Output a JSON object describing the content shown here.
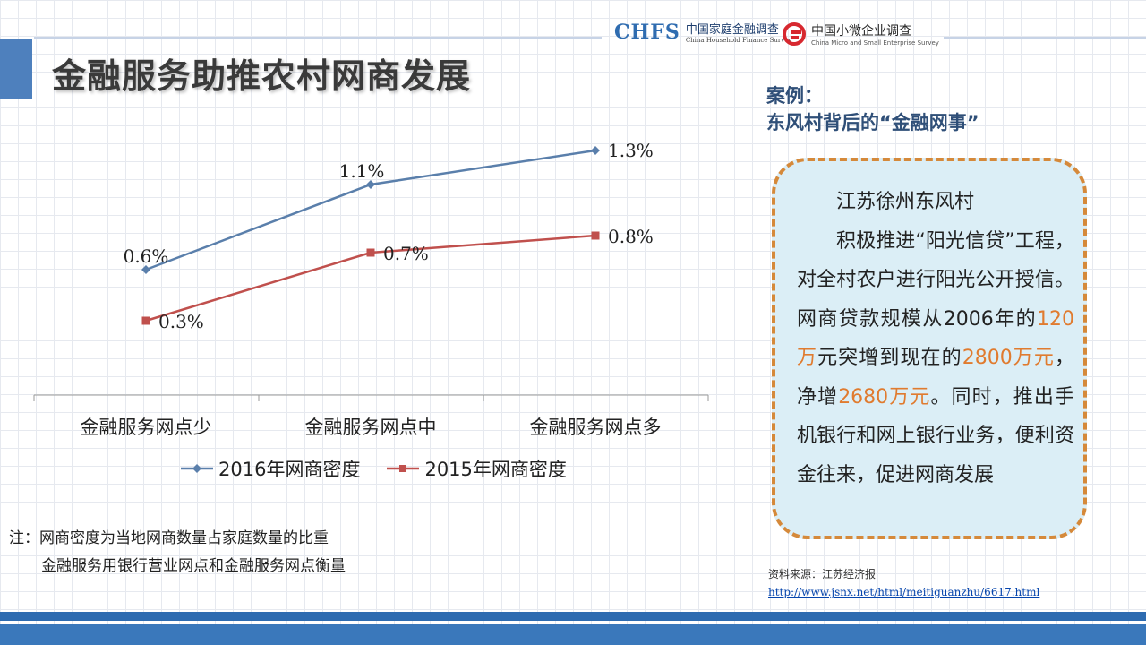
{
  "title": "金融服务助推农村网商发展",
  "logos": {
    "chfs_mark": "CHFS",
    "chfs_cn": "中国家庭金融调查",
    "chfs_en": "China Household Finance Survey",
    "cmse_cn": "中国小微企业调查",
    "cmse_en": "China Micro and Small Enterprise Survey"
  },
  "chart_data": {
    "type": "line",
    "categories": [
      "金融服务网点少",
      "金融服务网点中",
      "金融服务网点多"
    ],
    "series": [
      {
        "name": "2016年网商密度",
        "values": [
          0.6,
          1.1,
          1.3
        ],
        "labels": [
          "0.6%",
          "1.1%",
          "1.3%"
        ],
        "color": "#5a7fab",
        "marker": "diamond"
      },
      {
        "name": "2015年网商密度",
        "values": [
          0.3,
          0.7,
          0.8
        ],
        "labels": [
          "0.3%",
          "0.7%",
          "0.8%"
        ],
        "color": "#c0504d",
        "marker": "square"
      }
    ],
    "legend": "bottom"
  },
  "note": {
    "line1": "注：网商密度为当地网商数量占家庭数量的比重",
    "line2": "金融服务用银行营业网点和金融服务网点衡量"
  },
  "case": {
    "heading1": "案例：",
    "heading2": "东风村背后的“金融网事”",
    "p1": "江苏徐州东风村",
    "p2_a": "积极推进“阳光信贷”工程，对全村农户进行阳光公开授信。网商贷款规模从2006年的",
    "p2_h1": "120万",
    "p2_b": "元突增到现在的",
    "p2_h2": "2800万元",
    "p2_c": "，净增",
    "p2_h3": "2680万元",
    "p2_d": "。同时，推出手机银行和网上银行业务，便利资金往来，促进网商发展"
  },
  "source": {
    "label": "资料来源：江苏经济报",
    "url": "http://www.jsnx.net/html/meitiguanzhu/6617.html"
  },
  "colors": {
    "accent": "#4e80bd",
    "highlight": "#e07b2f",
    "box_border": "#d5893a",
    "box_bg": "#dbeef6"
  }
}
